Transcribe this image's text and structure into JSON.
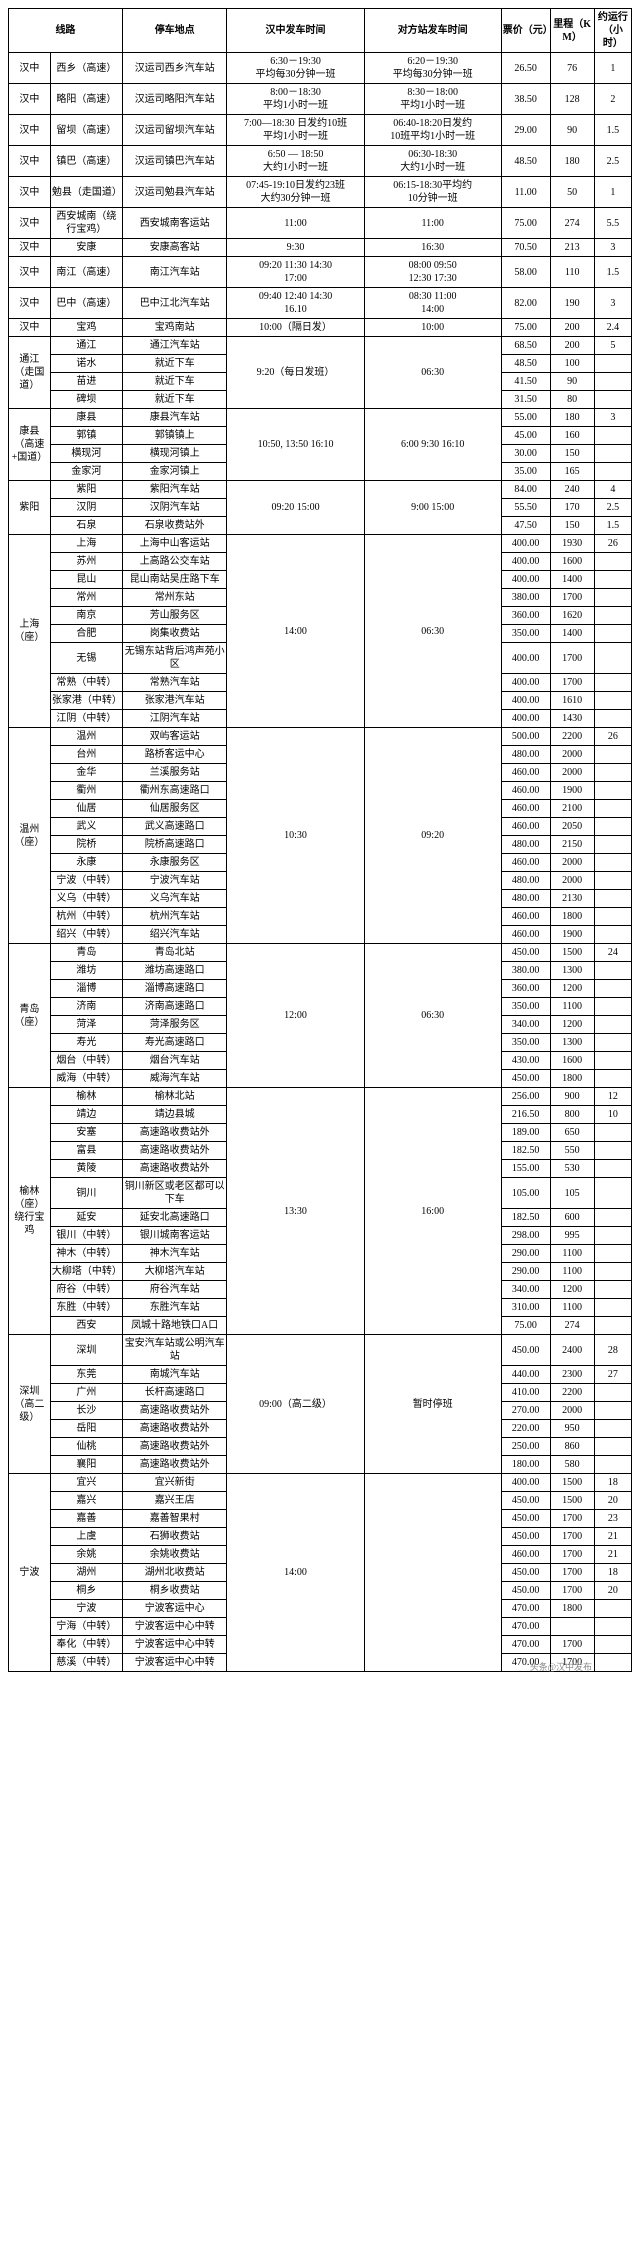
{
  "headers": [
    "线路",
    "停车地点",
    "汉中发车时间",
    "对方站发车时间",
    "票价（元）",
    "里程（KM）",
    "约运行（小时）"
  ],
  "groups": [
    {
      "route": "汉中",
      "rows": [
        {
          "dest": "西乡（高速）",
          "stop": "汉运司西乡汽车站",
          "hz": "6:30－19:30\n平均每30分钟一班",
          "opp": "6:20－19:30\n平均每30分钟一班",
          "price": "26.50",
          "km": "76",
          "hrs": "1"
        },
        {
          "dest": "略阳（高速）",
          "stop": "汉运司略阳汽车站",
          "hz": "8:00－18:30\n平均1小时一班",
          "opp": "8:30－18:00\n平均1小时一班",
          "price": "38.50",
          "km": "128",
          "hrs": "2"
        },
        {
          "dest": "留坝（高速）",
          "stop": "汉运司留坝汽车站",
          "hz": "7:00—18:30  日发约10班\n平均1小时一班",
          "opp": "06:40-18:20日发约\n10班平均1小时一班",
          "price": "29.00",
          "km": "90",
          "hrs": "1.5"
        },
        {
          "dest": "镇巴（高速）",
          "stop": "汉运司镇巴汽车站",
          "hz": "6:50 — 18:50\n大约1小时一班",
          "opp": "06:30-18:30\n大约1小时一班",
          "price": "48.50",
          "km": "180",
          "hrs": "2.5"
        },
        {
          "dest": "勉县（走国道）",
          "stop": "汉运司勉县汽车站",
          "hz": "07:45-19:10日发约23班\n大约30分钟一班",
          "opp": "06:15-18:30平均约\n10分钟一班",
          "price": "11.00",
          "km": "50",
          "hrs": "1"
        },
        {
          "dest": "西安城南（绕行宝鸡）",
          "stop": "西安城南客运站",
          "hz": "11:00",
          "opp": "11:00",
          "price": "75.00",
          "km": "274",
          "hrs": "5.5"
        },
        {
          "dest": "安康",
          "stop": "安康高客站",
          "hz": "9:30",
          "opp": "16:30",
          "price": "70.50",
          "km": "213",
          "hrs": "3"
        },
        {
          "dest": "南江（高速）",
          "stop": "南江汽车站",
          "hz": "09:20   11:30   14:30\n17:00",
          "opp": "08:00     09:50\n12:30   17:30",
          "price": "58.00",
          "km": "110",
          "hrs": "1.5"
        },
        {
          "dest": "巴中（高速）",
          "stop": "巴中江北汽车站",
          "hz": "09:40   12:40   14:30\n16.10",
          "opp": "08:30   11:00\n14:00",
          "price": "82.00",
          "km": "190",
          "hrs": "3"
        },
        {
          "dest": "宝鸡",
          "stop": "宝鸡南站",
          "hz": "10:00（隔日发）",
          "opp": "10:00",
          "price": "75.00",
          "km": "200",
          "hrs": "2.4"
        }
      ]
    },
    {
      "route": "通江（走国道）",
      "hz": "9:20（每日发班）",
      "opp": "06:30",
      "rows": [
        {
          "dest": "通江",
          "stop": "通江汽车站",
          "price": "68.50",
          "km": "200",
          "hrs": "5"
        },
        {
          "dest": "诺水",
          "stop": "就近下车",
          "price": "48.50",
          "km": "100",
          "hrs": ""
        },
        {
          "dest": "苗进",
          "stop": "就近下车",
          "price": "41.50",
          "km": "90",
          "hrs": ""
        },
        {
          "dest": "碑坝",
          "stop": "就近下车",
          "price": "31.50",
          "km": "80",
          "hrs": ""
        }
      ]
    },
    {
      "route": "康县（高速+国道）",
      "hz": "10:50, 13:50  16:10",
      "opp": "6:00  9:30 16:10",
      "rows": [
        {
          "dest": "康县",
          "stop": "康县汽车站",
          "price": "55.00",
          "km": "180",
          "hrs": "3"
        },
        {
          "dest": "郭镇",
          "stop": "郭镇镇上",
          "price": "45.00",
          "km": "160",
          "hrs": ""
        },
        {
          "dest": "横现河",
          "stop": "横现河镇上",
          "price": "30.00",
          "km": "150",
          "hrs": ""
        },
        {
          "dest": "金家河",
          "stop": "金家河镇上",
          "price": "35.00",
          "km": "165",
          "hrs": ""
        }
      ]
    },
    {
      "route": "紫阳",
      "hz": "09:20     15:00",
      "opp": "9:00    15:00",
      "rows": [
        {
          "dest": "紫阳",
          "stop": "紫阳汽车站",
          "price": "84.00",
          "km": "240",
          "hrs": "4"
        },
        {
          "dest": "汉阴",
          "stop": "汉阴汽车站",
          "price": "55.50",
          "km": "170",
          "hrs": "2.5"
        },
        {
          "dest": "石泉",
          "stop": "石泉收费站外",
          "price": "47.50",
          "km": "150",
          "hrs": "1.5"
        }
      ]
    },
    {
      "route": "上海（座）",
      "hz": "14:00",
      "opp": "06:30",
      "rows": [
        {
          "dest": "上海",
          "stop": "上海中山客运站",
          "price": "400.00",
          "km": "1930",
          "hrs": "26"
        },
        {
          "dest": "苏州",
          "stop": "上高路公交车站",
          "price": "400.00",
          "km": "1600",
          "hrs": ""
        },
        {
          "dest": "昆山",
          "stop": "昆山南站吴庄路下车",
          "price": "400.00",
          "km": "1400",
          "hrs": ""
        },
        {
          "dest": "常州",
          "stop": "常州东站",
          "price": "380.00",
          "km": "1700",
          "hrs": ""
        },
        {
          "dest": "南京",
          "stop": "芳山服务区",
          "price": "360.00",
          "km": "1620",
          "hrs": ""
        },
        {
          "dest": "合肥",
          "stop": "岗集收费站",
          "price": "350.00",
          "km": "1400",
          "hrs": ""
        },
        {
          "dest": "无锡",
          "stop": "无锡东站背后鸿声苑小区",
          "price": "400.00",
          "km": "1700",
          "hrs": ""
        },
        {
          "dest": "常熟（中转）",
          "stop": "常熟汽车站",
          "price": "400.00",
          "km": "1700",
          "hrs": ""
        },
        {
          "dest": "张家港（中转）",
          "stop": "张家港汽车站",
          "price": "400.00",
          "km": "1610",
          "hrs": ""
        },
        {
          "dest": "江阴（中转）",
          "stop": "江阴汽车站",
          "price": "400.00",
          "km": "1430",
          "hrs": ""
        }
      ]
    },
    {
      "route": "温州（座）",
      "hz": "10:30",
      "opp": "09:20",
      "rows": [
        {
          "dest": "温州",
          "stop": "双屿客运站",
          "price": "500.00",
          "km": "2200",
          "hrs": "26"
        },
        {
          "dest": "台州",
          "stop": "路桥客运中心",
          "price": "480.00",
          "km": "2000",
          "hrs": ""
        },
        {
          "dest": "金华",
          "stop": "兰溪服务站",
          "price": "460.00",
          "km": "2000",
          "hrs": ""
        },
        {
          "dest": "衢州",
          "stop": "衢州东高速路口",
          "price": "460.00",
          "km": "1900",
          "hrs": ""
        },
        {
          "dest": "仙居",
          "stop": "仙居服务区",
          "price": "460.00",
          "km": "2100",
          "hrs": ""
        },
        {
          "dest": "武义",
          "stop": "武义高速路口",
          "price": "460.00",
          "km": "2050",
          "hrs": ""
        },
        {
          "dest": "院桥",
          "stop": "院桥高速路口",
          "price": "480.00",
          "km": "2150",
          "hrs": ""
        },
        {
          "dest": "永康",
          "stop": "永康服务区",
          "price": "460.00",
          "km": "2000",
          "hrs": ""
        },
        {
          "dest": "宁波（中转）",
          "stop": "宁波汽车站",
          "price": "480.00",
          "km": "2000",
          "hrs": ""
        },
        {
          "dest": "义乌（中转）",
          "stop": "义乌汽车站",
          "price": "480.00",
          "km": "2130",
          "hrs": ""
        },
        {
          "dest": "杭州（中转）",
          "stop": "杭州汽车站",
          "price": "460.00",
          "km": "1800",
          "hrs": ""
        },
        {
          "dest": "绍兴（中转）",
          "stop": "绍兴汽车站",
          "price": "460.00",
          "km": "1900",
          "hrs": ""
        }
      ]
    },
    {
      "route": "青岛（座）",
      "hz": "12:00",
      "opp": "06:30",
      "rows": [
        {
          "dest": "青岛",
          "stop": "青岛北站",
          "price": "450.00",
          "km": "1500",
          "hrs": "24"
        },
        {
          "dest": "潍坊",
          "stop": "潍坊高速路口",
          "price": "380.00",
          "km": "1300",
          "hrs": ""
        },
        {
          "dest": "淄博",
          "stop": "淄博高速路口",
          "price": "360.00",
          "km": "1200",
          "hrs": ""
        },
        {
          "dest": "济南",
          "stop": "济南高速路口",
          "price": "350.00",
          "km": "1100",
          "hrs": ""
        },
        {
          "dest": "菏泽",
          "stop": "菏泽服务区",
          "price": "340.00",
          "km": "1200",
          "hrs": ""
        },
        {
          "dest": "寿光",
          "stop": "寿光高速路口",
          "price": "350.00",
          "km": "1300",
          "hrs": ""
        },
        {
          "dest": "烟台（中转）",
          "stop": "烟台汽车站",
          "price": "430.00",
          "km": "1600",
          "hrs": ""
        },
        {
          "dest": "威海（中转）",
          "stop": "威海汽车站",
          "price": "450.00",
          "km": "1800",
          "hrs": ""
        }
      ]
    },
    {
      "route": "榆林（座）绕行宝鸡",
      "hz": "13:30",
      "opp": "16:00",
      "rows": [
        {
          "dest": "榆林",
          "stop": "榆林北站",
          "price": "256.00",
          "km": "900",
          "hrs": "12"
        },
        {
          "dest": "靖边",
          "stop": "靖边县城",
          "price": "216.50",
          "km": "800",
          "hrs": "10"
        },
        {
          "dest": "安塞",
          "stop": "高速路收费站外",
          "price": "189.00",
          "km": "650",
          "hrs": ""
        },
        {
          "dest": "富县",
          "stop": "高速路收费站外",
          "price": "182.50",
          "km": "550",
          "hrs": ""
        },
        {
          "dest": "黄陵",
          "stop": "高速路收费站外",
          "price": "155.00",
          "km": "530",
          "hrs": ""
        },
        {
          "dest": "铜川",
          "stop": "铜川新区或老区都可以下车",
          "price": "105.00",
          "km": "105",
          "hrs": ""
        },
        {
          "dest": "延安",
          "stop": "延安北高速路口",
          "price": "182.50",
          "km": "600",
          "hrs": ""
        },
        {
          "dest": "银川（中转）",
          "stop": "银川城南客运站",
          "price": "298.00",
          "km": "995",
          "hrs": ""
        },
        {
          "dest": "神木（中转）",
          "stop": "神木汽车站",
          "price": "290.00",
          "km": "1100",
          "hrs": ""
        },
        {
          "dest": "大柳塔（中转）",
          "stop": "大柳塔汽车站",
          "price": "290.00",
          "km": "1100",
          "hrs": ""
        },
        {
          "dest": "府谷（中转）",
          "stop": "府谷汽车站",
          "price": "340.00",
          "km": "1200",
          "hrs": ""
        },
        {
          "dest": "东胜（中转）",
          "stop": "东胜汽车站",
          "price": "310.00",
          "km": "1100",
          "hrs": ""
        },
        {
          "dest": "西安",
          "stop": "凤城十路地铁口A口",
          "price": "75.00",
          "km": "274",
          "hrs": ""
        }
      ]
    },
    {
      "route": "深圳（高二级）",
      "hz": "09:00（高二级）",
      "opp": "暂时停班",
      "oppSpan": true,
      "rows": [
        {
          "dest": "深圳",
          "stop": "宝安汽车站或公明汽车站",
          "price": "450.00",
          "km": "2400",
          "hrs": "28"
        },
        {
          "dest": "东莞",
          "stop": "南城汽车站",
          "price": "440.00",
          "km": "2300",
          "hrs": "27"
        },
        {
          "dest": "广州",
          "stop": "长杆高速路口",
          "price": "410.00",
          "km": "2200",
          "hrs": ""
        },
        {
          "dest": "长沙",
          "stop": "高速路收费站外",
          "price": "270.00",
          "km": "2000",
          "hrs": ""
        },
        {
          "dest": "岳阳",
          "stop": "高速路收费站外",
          "price": "220.00",
          "km": "950",
          "hrs": ""
        },
        {
          "dest": "仙桃",
          "stop": "高速路收费站外",
          "price": "250.00",
          "km": "860",
          "hrs": ""
        },
        {
          "dest": "襄阳",
          "stop": "高速路收费站外",
          "price": "180.00",
          "km": "580",
          "hrs": ""
        }
      ]
    },
    {
      "route": "宁波",
      "hz": "14:00",
      "opp": "",
      "rows": [
        {
          "dest": "宜兴",
          "stop": "宜兴新街",
          "price": "400.00",
          "km": "1500",
          "hrs": "18"
        },
        {
          "dest": "嘉兴",
          "stop": "嘉兴王店",
          "price": "450.00",
          "km": "1500",
          "hrs": "20"
        },
        {
          "dest": "嘉善",
          "stop": "嘉善智果村",
          "price": "450.00",
          "km": "1700",
          "hrs": "23"
        },
        {
          "dest": "上虞",
          "stop": "石狮收费站",
          "price": "450.00",
          "km": "1700",
          "hrs": "21"
        },
        {
          "dest": "余姚",
          "stop": "余姚收费站",
          "price": "460.00",
          "km": "1700",
          "hrs": "21"
        },
        {
          "dest": "湖州",
          "stop": "湖州北收费站",
          "price": "450.00",
          "km": "1700",
          "hrs": "18"
        },
        {
          "dest": "桐乡",
          "stop": "桐乡收费站",
          "price": "450.00",
          "km": "1700",
          "hrs": "20"
        },
        {
          "dest": "宁波",
          "stop": "宁波客运中心",
          "price": "470.00",
          "km": "1800",
          "hrs": ""
        },
        {
          "dest": "宁海（中转）",
          "stop": "宁波客运中心中转",
          "price": "470.00",
          "km": "",
          "hrs": ""
        },
        {
          "dest": "奉化（中转）",
          "stop": "宁波客运中心中转",
          "price": "470.00",
          "km": "1700",
          "hrs": ""
        },
        {
          "dest": "慈溪（中转）",
          "stop": "宁波客运中心中转",
          "price": "470.00",
          "km": "1700",
          "hrs": ""
        }
      ]
    }
  ],
  "watermark": "头条@汉中发布"
}
